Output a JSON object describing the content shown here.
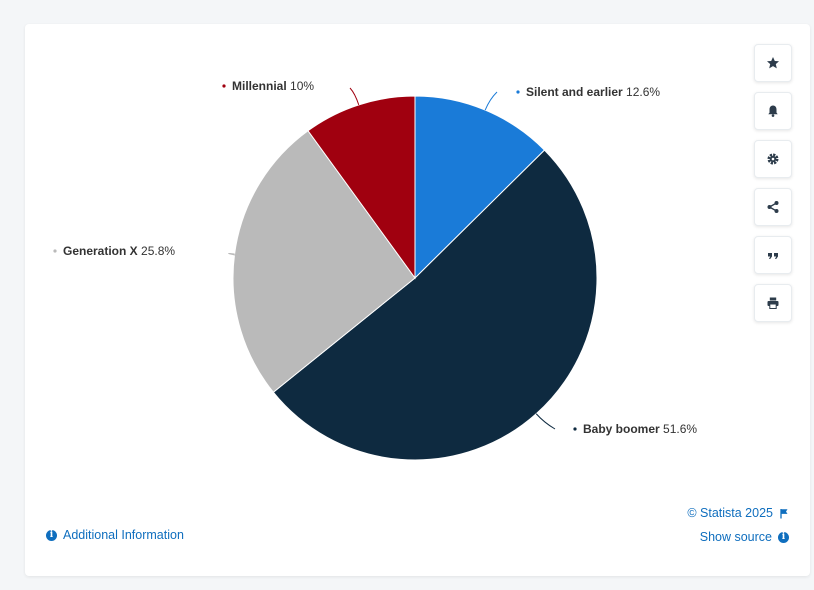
{
  "chart_data": {
    "type": "pie",
    "slices": [
      {
        "name": "Silent and earlier",
        "value": 12.6,
        "label": "12.6%",
        "color": "#1a7bd8"
      },
      {
        "name": "Baby boomer",
        "value": 51.6,
        "label": "51.6%",
        "color": "#0e2a40"
      },
      {
        "name": "Generation X",
        "value": 25.8,
        "label": "25.8%",
        "color": "#bababa"
      },
      {
        "name": "Millennial",
        "value": 10,
        "label": "10%",
        "color": "#a0000f"
      }
    ]
  },
  "toolbar": {
    "buttons": [
      {
        "name": "favorite-button",
        "icon": "star-icon"
      },
      {
        "name": "notification-button",
        "icon": "bell-icon"
      },
      {
        "name": "settings-button",
        "icon": "gear-icon"
      },
      {
        "name": "share-button",
        "icon": "share-icon"
      },
      {
        "name": "cite-button",
        "icon": "quote-icon"
      },
      {
        "name": "print-button",
        "icon": "print-icon"
      }
    ]
  },
  "footer": {
    "additional_info": "Additional Information",
    "copyright": "© Statista 2025",
    "show_source": "Show source"
  }
}
